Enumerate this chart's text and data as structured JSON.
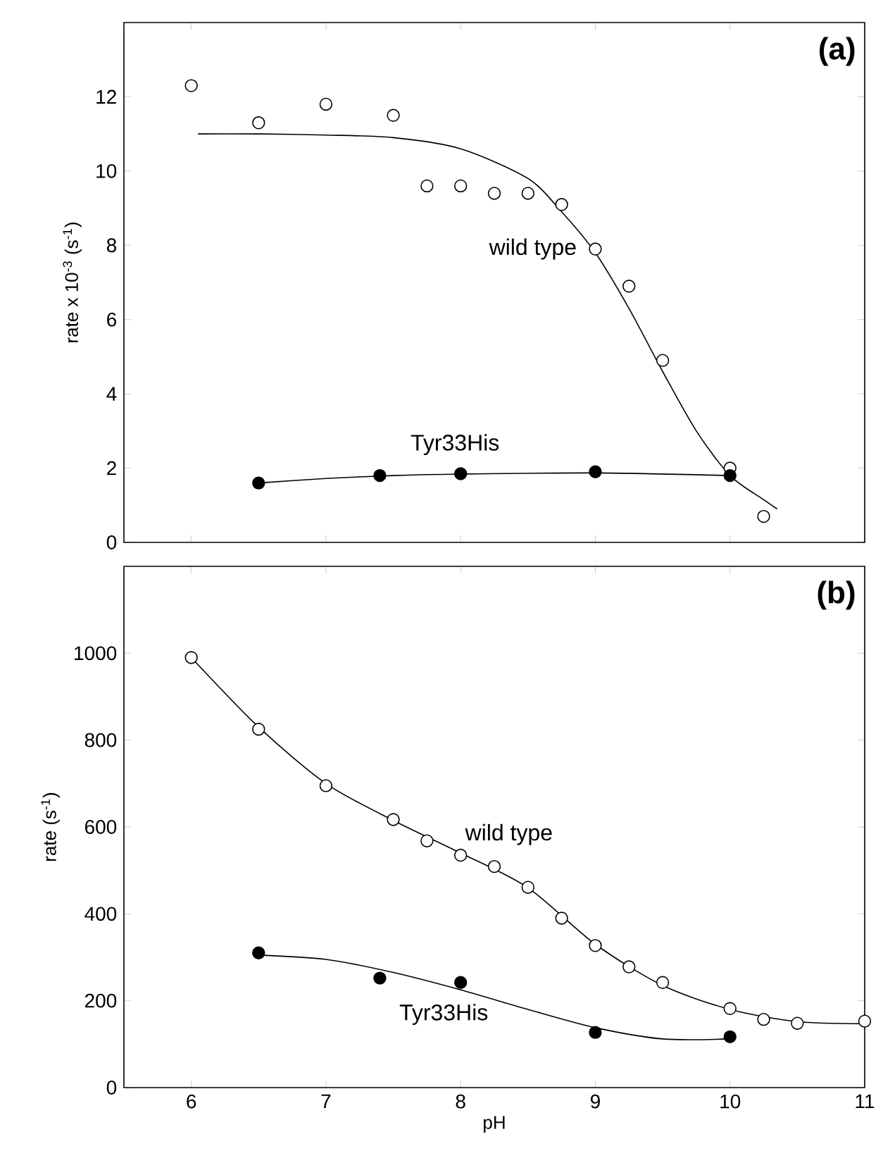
{
  "chart_data": [
    {
      "type": "line",
      "ylabel": "rate x 10$^{-3}$ (s$^{-1}$)",
      "annotations": [
        "(a)"
      ],
      "xlim": [
        5.5,
        11
      ],
      "ylim": [
        0,
        14
      ],
      "xticks": [
        6,
        7,
        8,
        9,
        10,
        11
      ],
      "yticks": [
        0,
        2,
        4,
        6,
        8,
        10,
        12
      ],
      "tick_labels": "y",
      "series": [
        {
          "color": "#000000",
          "marker": "none",
          "x": [
            6.05,
            6.5,
            7,
            7.5,
            8,
            8.5,
            8.75,
            9,
            9.25,
            9.5,
            9.75,
            10,
            10.25,
            10.35
          ],
          "values": [
            11.0,
            11.0,
            10.97,
            10.9,
            10.6,
            9.8,
            8.9,
            7.8,
            6.3,
            4.6,
            3.0,
            1.8,
            1.15,
            0.9
          ]
        },
        {
          "color": "#000000",
          "marker": "none",
          "x": [
            6.5,
            7,
            7.5,
            8,
            9,
            10
          ],
          "values": [
            1.6,
            1.72,
            1.8,
            1.84,
            1.87,
            1.8
          ]
        },
        {
          "type": "scatter",
          "marker": "circle",
          "name": "wild type",
          "color": "#ffffff",
          "x": [
            6,
            6.5,
            7,
            7.5,
            7.75,
            8,
            8.25,
            8.5,
            8.75,
            9,
            9.25,
            9.5,
            10,
            10.25
          ],
          "values": [
            12.3,
            11.3,
            11.8,
            11.5,
            9.6,
            9.6,
            9.4,
            9.4,
            9.1,
            7.9,
            6.9,
            4.9,
            2.0,
            0.7
          ]
        },
        {
          "type": "scatter",
          "marker": "circle",
          "name": "Tyr33His",
          "color": "#000000",
          "x": [
            6.5,
            7.4,
            8,
            9,
            10
          ],
          "values": [
            1.6,
            1.8,
            1.85,
            1.9,
            1.8
          ]
        }
      ]
    },
    {
      "type": "line",
      "xlabel": "pH",
      "ylabel": "rate (s$^{-1}$)",
      "annotations": [
        "(b)"
      ],
      "xlim": [
        5.5,
        11
      ],
      "ylim": [
        0,
        1200
      ],
      "xticks": [
        6,
        7,
        8,
        9,
        10,
        11
      ],
      "yticks": [
        0,
        200,
        400,
        600,
        800,
        1000
      ],
      "series": [
        {
          "color": "#000000",
          "marker": "none",
          "x": [
            6,
            6.5,
            7,
            7.5,
            8,
            8.5,
            9,
            9.5,
            10,
            10.5,
            11
          ],
          "values": [
            990,
            830,
            700,
            615,
            540,
            460,
            330,
            235,
            180,
            152,
            147
          ]
        },
        {
          "color": "#000000",
          "marker": "none",
          "x": [
            6.5,
            7,
            7.5,
            8,
            8.5,
            9,
            9.5,
            10
          ],
          "values": [
            305,
            295,
            265,
            225,
            180,
            138,
            112,
            112
          ]
        },
        {
          "type": "scatter",
          "marker": "circle",
          "name": "wild type",
          "color": "#ffffff",
          "x": [
            6,
            6.5,
            7,
            7.5,
            7.75,
            8,
            8.25,
            8.5,
            8.75,
            9,
            9.25,
            9.5,
            10,
            10.25,
            10.5,
            11
          ],
          "values": [
            990,
            825,
            695,
            617,
            568,
            535,
            509,
            461,
            390,
            327,
            278,
            242,
            182,
            157,
            148,
            153
          ]
        },
        {
          "type": "scatter",
          "marker": "circle",
          "name": "Tyr33His",
          "color": "#000000",
          "x": [
            6.5,
            7.4,
            8,
            9,
            10
          ],
          "values": [
            310,
            252,
            242,
            127,
            117
          ]
        }
      ]
    }
  ]
}
